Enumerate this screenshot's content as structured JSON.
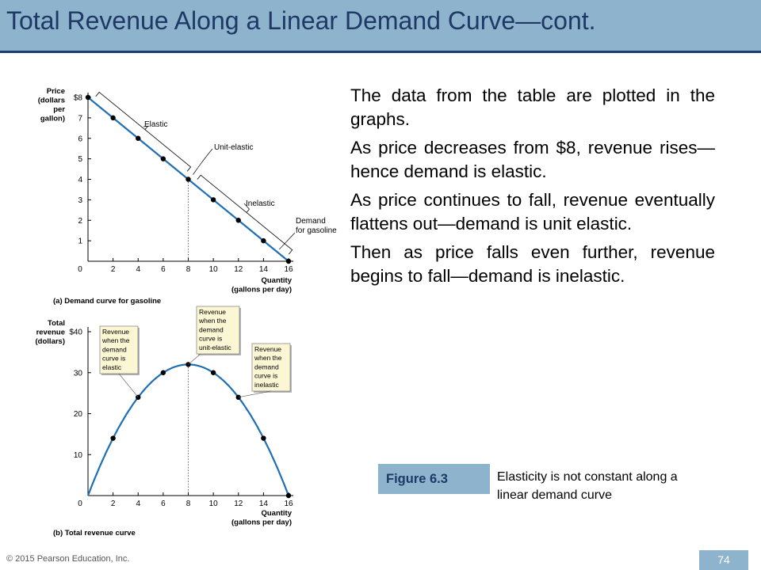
{
  "slide": {
    "title": "Total Revenue Along a Linear Demand Curve—cont.",
    "bullets": [
      "The data from the table are plotted in the graphs.",
      "As price decreases from $8, revenue rises—hence demand is elastic.",
      "As price continues to fall, revenue eventually flattens out—demand is unit elastic.",
      "Then as price falls even further, revenue begins to fall—demand is inelastic."
    ],
    "figure_label": "Figure 6.3",
    "figure_caption": "Elasticity is not constant along a linear demand curve",
    "copyright": "© 2015 Pearson Education, Inc.",
    "page_number": "74"
  },
  "colors": {
    "header": "#8eb4cd",
    "title": "#1f3866",
    "curve": "#1f6fb5",
    "point": "#000000"
  },
  "chart_data": [
    {
      "type": "line",
      "title": "",
      "caption": "(a) Demand curve for gasoline",
      "ylabel": [
        "Price",
        "(dollars",
        "per",
        "gallon)"
      ],
      "xlabel": [
        "Quantity",
        "(gallons per day)"
      ],
      "xlim": [
        0,
        16
      ],
      "ylim": [
        0,
        8
      ],
      "x_ticks": [
        "0",
        "2",
        "4",
        "6",
        "8",
        "10",
        "12",
        "14",
        "16"
      ],
      "y_ticks": [
        "1",
        "2",
        "3",
        "4",
        "5",
        "6",
        "7",
        "$8"
      ],
      "series": [
        {
          "name": "Demand for gasoline",
          "x": [
            0,
            2,
            4,
            6,
            8,
            10,
            12,
            14,
            16
          ],
          "y": [
            8,
            7,
            6,
            5,
            4,
            3,
            2,
            1,
            0
          ]
        }
      ],
      "annotations": [
        "Elastic",
        "Unit-elastic",
        "Inelastic",
        "Demand",
        "for gasoline"
      ],
      "reference_line_x": 8
    },
    {
      "type": "line",
      "title": "",
      "caption": "(b) Total revenue curve",
      "ylabel": [
        "Total",
        "revenue",
        "(dollars)"
      ],
      "xlabel": [
        "Quantity",
        "(gallons per day)"
      ],
      "xlim": [
        0,
        16
      ],
      "ylim": [
        0,
        40
      ],
      "x_ticks": [
        "0",
        "2",
        "4",
        "6",
        "8",
        "10",
        "12",
        "14",
        "16"
      ],
      "y_ticks": [
        "10",
        "20",
        "30",
        "$40"
      ],
      "series": [
        {
          "name": "Total revenue",
          "x": [
            0,
            2,
            4,
            6,
            8,
            10,
            12,
            14,
            16
          ],
          "y": [
            0,
            14,
            24,
            30,
            32,
            30,
            24,
            14,
            0
          ]
        }
      ],
      "callouts": [
        [
          "Revenue",
          "when the",
          "demand",
          "curve is",
          "elastic"
        ],
        [
          "Revenue",
          "when the",
          "demand",
          "curve is",
          "unit-elastic"
        ],
        [
          "Revenue",
          "when the",
          "demand",
          "curve is",
          "inelastic"
        ]
      ],
      "reference_line_x": 8
    }
  ]
}
